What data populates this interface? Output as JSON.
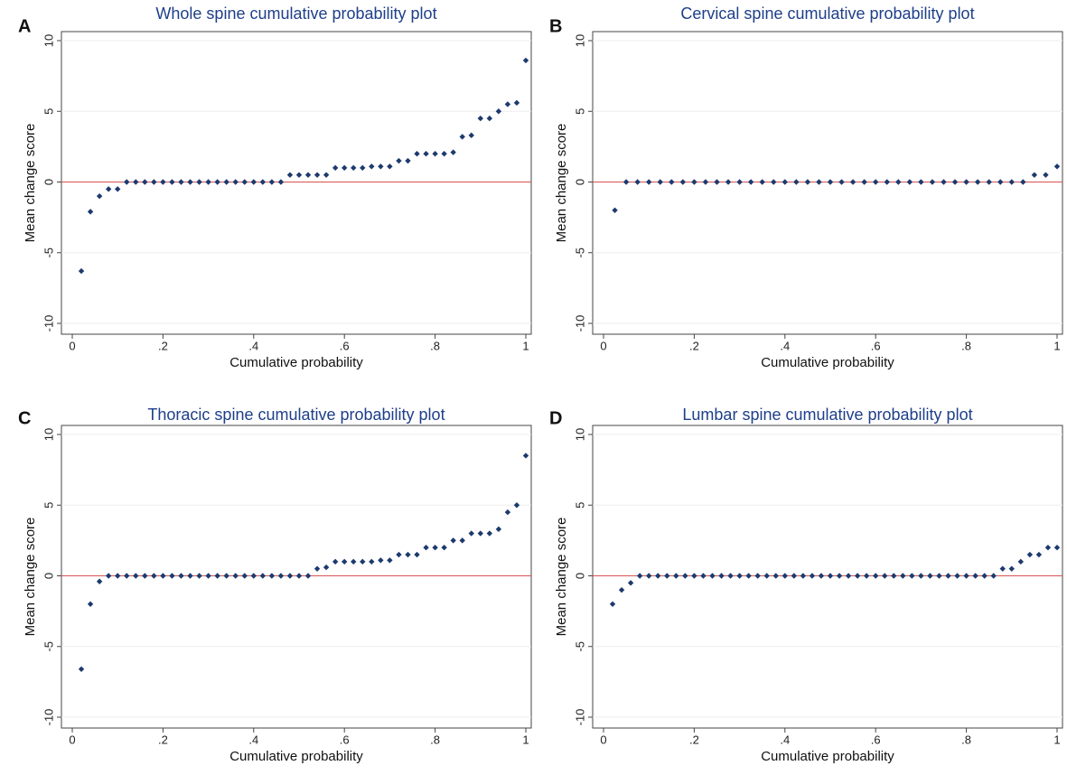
{
  "chart_data": [
    {
      "type": "scatter",
      "panel": "A",
      "title": "Whole spine cumulative probability plot",
      "x_label": "Cumulative probability",
      "y_label": "Mean change score",
      "color": "#1d3a6e",
      "reference_line": {
        "value": 0,
        "color": "#d9534f"
      },
      "grid": true,
      "xlim": [
        0,
        1
      ],
      "ylim": [
        -10,
        10
      ],
      "xticks": [
        0,
        {
          "value": 0.2,
          "label": ".2"
        },
        {
          "value": 0.4,
          "label": ".4"
        },
        {
          "value": 0.6,
          "label": ".6"
        },
        {
          "value": 0.8,
          "label": ".8"
        },
        1
      ],
      "yticks": [
        -10,
        -5,
        0,
        5,
        10
      ],
      "x": [
        0.02,
        0.04,
        0.06,
        0.08,
        0.1,
        0.12,
        0.14,
        0.16,
        0.18,
        0.2,
        0.22,
        0.24,
        0.26,
        0.28,
        0.3,
        0.32,
        0.34,
        0.36,
        0.38,
        0.4,
        0.42,
        0.44,
        0.46,
        0.48,
        0.5,
        0.52,
        0.54,
        0.56,
        0.58,
        0.6,
        0.62,
        0.64,
        0.66,
        0.68,
        0.7,
        0.72,
        0.74,
        0.76,
        0.78,
        0.8,
        0.82,
        0.84,
        0.86,
        0.88,
        0.9,
        0.92,
        0.94,
        0.96,
        0.98,
        1.0
      ],
      "values": [
        -6.3,
        -2.1,
        -1,
        -0.5,
        -0.5,
        0,
        0,
        0,
        0,
        0,
        0,
        0,
        0,
        0,
        0,
        0,
        0,
        0,
        0,
        0,
        0,
        0,
        0,
        0.5,
        0.5,
        0.5,
        0.5,
        0.5,
        1,
        1,
        1,
        1,
        1.1,
        1.1,
        1.1,
        1.5,
        1.5,
        2,
        2,
        2,
        2,
        2.1,
        3.2,
        3.3,
        4.5,
        4.5,
        5,
        5.5,
        5.6,
        8.6
      ]
    },
    {
      "type": "scatter",
      "panel": "B",
      "title": "Cervical spine cumulative probability plot",
      "x_label": "Cumulative probability",
      "y_label": "Mean change score",
      "color": "#1d3a6e",
      "reference_line": {
        "value": 0,
        "color": "#d9534f"
      },
      "grid": true,
      "xlim": [
        0,
        1
      ],
      "ylim": [
        -10,
        10
      ],
      "xticks": [
        0,
        {
          "value": 0.2,
          "label": ".2"
        },
        {
          "value": 0.4,
          "label": ".4"
        },
        {
          "value": 0.6,
          "label": ".6"
        },
        {
          "value": 0.8,
          "label": ".8"
        },
        1
      ],
      "yticks": [
        -10,
        -5,
        0,
        5,
        10
      ],
      "x": [
        0.025,
        0.05,
        0.075,
        0.1,
        0.125,
        0.15,
        0.175,
        0.2,
        0.225,
        0.25,
        0.275,
        0.3,
        0.325,
        0.35,
        0.375,
        0.4,
        0.425,
        0.45,
        0.475,
        0.5,
        0.525,
        0.55,
        0.575,
        0.6,
        0.625,
        0.65,
        0.675,
        0.7,
        0.725,
        0.75,
        0.775,
        0.8,
        0.825,
        0.85,
        0.875,
        0.9,
        0.925,
        0.95,
        0.975,
        1.0
      ],
      "values": [
        -2,
        0,
        0,
        0,
        0,
        0,
        0,
        0,
        0,
        0,
        0,
        0,
        0,
        0,
        0,
        0,
        0,
        0,
        0,
        0,
        0,
        0,
        0,
        0,
        0,
        0,
        0,
        0,
        0,
        0,
        0,
        0,
        0,
        0,
        0,
        0,
        0,
        0.5,
        0.5,
        1.1
      ]
    },
    {
      "type": "scatter",
      "panel": "C",
      "title": "Thoracic spine cumulative probability plot",
      "x_label": "Cumulative probability",
      "y_label": "Mean change score",
      "color": "#1d3a6e",
      "reference_line": {
        "value": 0,
        "color": "#d9534f"
      },
      "grid": true,
      "xlim": [
        0,
        1
      ],
      "ylim": [
        -10,
        10
      ],
      "xticks": [
        0,
        {
          "value": 0.2,
          "label": ".2"
        },
        {
          "value": 0.4,
          "label": ".4"
        },
        {
          "value": 0.6,
          "label": ".6"
        },
        {
          "value": 0.8,
          "label": ".8"
        },
        1
      ],
      "yticks": [
        -10,
        -5,
        0,
        5,
        10
      ],
      "x": [
        0.02,
        0.04,
        0.06,
        0.08,
        0.1,
        0.12,
        0.14,
        0.16,
        0.18,
        0.2,
        0.22,
        0.24,
        0.26,
        0.28,
        0.3,
        0.32,
        0.34,
        0.36,
        0.38,
        0.4,
        0.42,
        0.44,
        0.46,
        0.48,
        0.5,
        0.52,
        0.54,
        0.56,
        0.58,
        0.6,
        0.62,
        0.64,
        0.66,
        0.68,
        0.7,
        0.72,
        0.74,
        0.76,
        0.78,
        0.8,
        0.82,
        0.84,
        0.86,
        0.88,
        0.9,
        0.92,
        0.94,
        0.96,
        0.98,
        1.0
      ],
      "values": [
        -6.6,
        -2,
        -0.4,
        0,
        0,
        0,
        0,
        0,
        0,
        0,
        0,
        0,
        0,
        0,
        0,
        0,
        0,
        0,
        0,
        0,
        0,
        0,
        0,
        0,
        0,
        0,
        0.5,
        0.6,
        1,
        1,
        1,
        1,
        1,
        1.1,
        1.1,
        1.5,
        1.5,
        1.5,
        2,
        2,
        2,
        2.5,
        2.5,
        3,
        3,
        3,
        3.3,
        4.5,
        5,
        8.5
      ]
    },
    {
      "type": "scatter",
      "panel": "D",
      "title": "Lumbar spine cumulative probability plot",
      "x_label": "Cumulative probability",
      "y_label": "Mean change score",
      "color": "#1d3a6e",
      "reference_line": {
        "value": 0,
        "color": "#d9534f"
      },
      "grid": true,
      "xlim": [
        0,
        1
      ],
      "ylim": [
        -10,
        10
      ],
      "xticks": [
        0,
        {
          "value": 0.2,
          "label": ".2"
        },
        {
          "value": 0.4,
          "label": ".4"
        },
        {
          "value": 0.6,
          "label": ".6"
        },
        {
          "value": 0.8,
          "label": ".8"
        },
        1
      ],
      "yticks": [
        -10,
        -5,
        0,
        5,
        10
      ],
      "x": [
        0.02,
        0.04,
        0.06,
        0.08,
        0.1,
        0.12,
        0.14,
        0.16,
        0.18,
        0.2,
        0.22,
        0.24,
        0.26,
        0.28,
        0.3,
        0.32,
        0.34,
        0.36,
        0.38,
        0.4,
        0.42,
        0.44,
        0.46,
        0.48,
        0.5,
        0.52,
        0.54,
        0.56,
        0.58,
        0.6,
        0.62,
        0.64,
        0.66,
        0.68,
        0.7,
        0.72,
        0.74,
        0.76,
        0.78,
        0.8,
        0.82,
        0.84,
        0.86,
        0.88,
        0.9,
        0.92,
        0.94,
        0.96,
        0.98,
        1.0
      ],
      "values": [
        -2,
        -1,
        -0.5,
        0,
        0,
        0,
        0,
        0,
        0,
        0,
        0,
        0,
        0,
        0,
        0,
        0,
        0,
        0,
        0,
        0,
        0,
        0,
        0,
        0,
        0,
        0,
        0,
        0,
        0,
        0,
        0,
        0,
        0,
        0,
        0,
        0,
        0,
        0,
        0,
        0,
        0,
        0,
        0,
        0.5,
        0.5,
        1,
        1.5,
        1.5,
        2,
        2
      ]
    }
  ]
}
